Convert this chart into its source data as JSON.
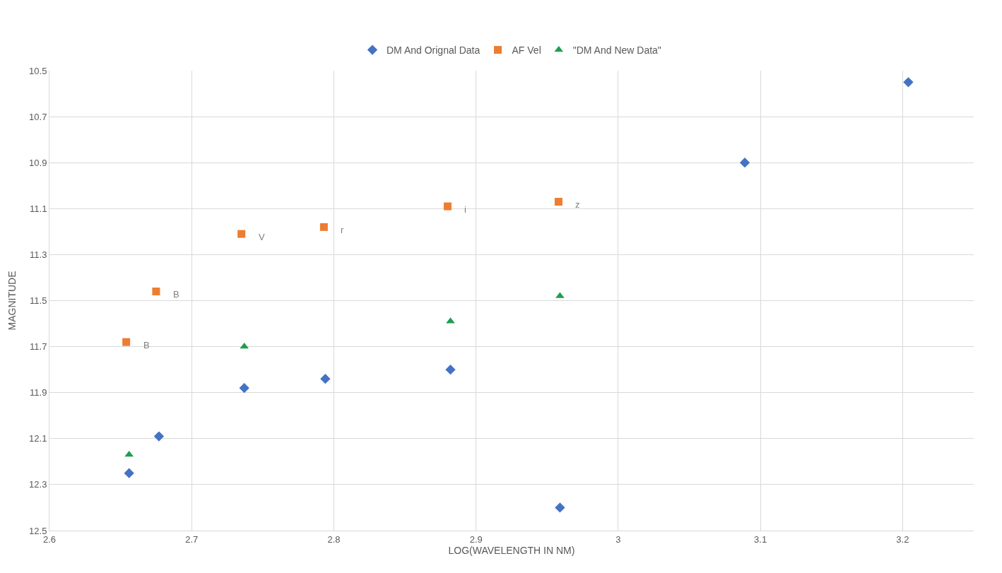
{
  "chart_data": {
    "type": "scatter",
    "xlabel": "LOG(WAVELENGTH IN NM)",
    "ylabel": "MAGNITUDE",
    "series": [
      {
        "name": "DM And Orignal Data",
        "color": "#4472c4",
        "marker": "diamond",
        "x": [
          2.656,
          2.677,
          2.737,
          2.794,
          2.882,
          2.959,
          3.089,
          3.204
        ],
        "values": [
          12.25,
          12.09,
          11.88,
          11.84,
          11.8,
          12.4,
          10.9,
          10.55
        ]
      },
      {
        "name": "AF Vel",
        "color": "#ed7d31",
        "marker": "square",
        "x": [
          2.654,
          2.675,
          2.735,
          2.793,
          2.88,
          2.958
        ],
        "values": [
          11.68,
          11.46,
          11.21,
          11.18,
          11.09,
          11.07
        ]
      },
      {
        "name": "\"DM And New Data\"",
        "color": "#1e9e4f",
        "marker": "triangle",
        "x": [
          2.656,
          2.737,
          2.882,
          2.959
        ],
        "values": [
          12.17,
          11.7,
          11.59,
          11.48
        ]
      }
    ],
    "annotations": [
      {
        "text": "B",
        "x": 2.654,
        "y": 11.68
      },
      {
        "text": "B",
        "x": 2.675,
        "y": 11.46
      },
      {
        "text": "V",
        "x": 2.735,
        "y": 11.21
      },
      {
        "text": "r",
        "x": 2.793,
        "y": 11.18
      },
      {
        "text": "i",
        "x": 2.88,
        "y": 11.09
      },
      {
        "text": "z",
        "x": 2.958,
        "y": 11.07
      }
    ],
    "xlim": [
      2.6,
      3.25
    ],
    "xticks": [
      2.6,
      2.7,
      2.8,
      2.9,
      3,
      3.1,
      3.2
    ],
    "ylim": [
      12.5,
      10.5
    ],
    "yticks": [
      10.5,
      10.7,
      10.9,
      11.1,
      11.3,
      11.5,
      11.7,
      11.9,
      12.1,
      12.3,
      12.5
    ],
    "grid": true,
    "legend": "top"
  }
}
